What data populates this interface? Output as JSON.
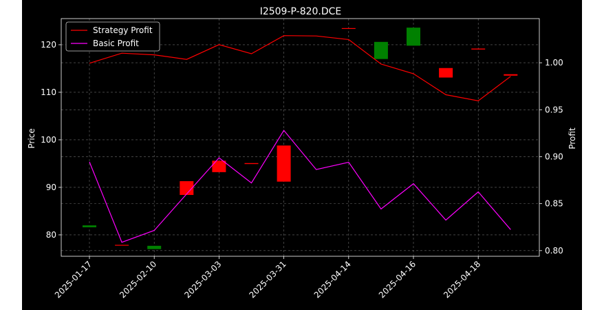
{
  "chart_data": {
    "type": "line",
    "title": "I2509-P-820.DCE",
    "ylabel_left": "Price",
    "ylabel_right": "Profit",
    "ylim_left": [
      75.5,
      125.5
    ],
    "ylim_right": [
      0.794,
      1.047
    ],
    "yticks_left": [
      80,
      90,
      100,
      110,
      120
    ],
    "yticks_right": [
      "0.80",
      "0.85",
      "0.90",
      "0.95",
      "1.00"
    ],
    "x_tick_labels": [
      "2025-01-17",
      "2025-02-10",
      "2025-03-03",
      "2025-03-31",
      "2025-04-14",
      "2025-04-16",
      "2025-04-18"
    ],
    "x_tick_positions": [
      0,
      2,
      4,
      6,
      8,
      10,
      12
    ],
    "grid": true,
    "legend_position": "upper left",
    "background": "#000000",
    "text_color": "#ffffff",
    "candles": [
      {
        "i": 0,
        "open": 81.6,
        "close": 82.0,
        "color": "#008000"
      },
      {
        "i": 1,
        "open": 77.9,
        "close": 77.8,
        "color": "#ff0000"
      },
      {
        "i": 2,
        "open": 77.0,
        "close": 77.7,
        "color": "#008000"
      },
      {
        "i": 3,
        "open": 91.3,
        "close": 88.4,
        "color": "#ff0000"
      },
      {
        "i": 4,
        "open": 95.6,
        "close": 93.2,
        "color": "#ff0000"
      },
      {
        "i": 5,
        "open": 95.1,
        "close": 94.9,
        "color": "#ff0000"
      },
      {
        "i": 6,
        "open": 98.8,
        "close": 91.2,
        "color": "#ff0000"
      },
      {
        "i": 8,
        "open": 123.5,
        "close": 123.4,
        "color": "#ff0000"
      },
      {
        "i": 9,
        "open": 117.0,
        "close": 120.6,
        "color": "#008000"
      },
      {
        "i": 10,
        "open": 119.8,
        "close": 123.6,
        "color": "#008000"
      },
      {
        "i": 11,
        "open": 115.1,
        "close": 113.1,
        "color": "#ff0000"
      },
      {
        "i": 12,
        "open": 119.2,
        "close": 119.0,
        "color": "#ff0000"
      },
      {
        "i": 13,
        "open": 113.8,
        "close": 113.5,
        "color": "#ff0000"
      }
    ],
    "series": [
      {
        "name": "Strategy Profit",
        "color": "#ff0000",
        "values": [
          0.9995,
          1.0102,
          1.0084,
          1.0036,
          1.0193,
          1.0096,
          1.0289,
          1.0285,
          1.0247,
          0.9986,
          0.9883,
          0.966,
          0.9595,
          0.9855
        ]
      },
      {
        "name": "Basic Profit",
        "color": "#ff00ff",
        "values": [
          0.8945,
          0.8089,
          0.8215,
          0.8603,
          0.8988,
          0.872,
          0.928,
          0.8863,
          0.8941,
          0.8443,
          0.8713,
          0.8325,
          0.8626,
          0.8224
        ]
      }
    ]
  }
}
